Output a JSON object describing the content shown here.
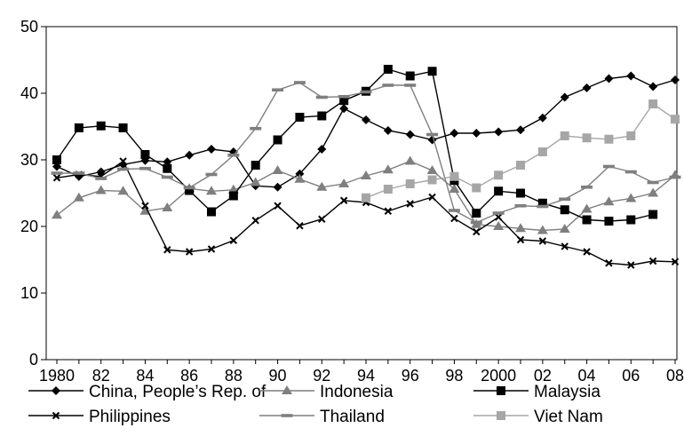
{
  "chart_data": {
    "type": "line",
    "title": "",
    "xlabel": "",
    "ylabel": "",
    "ylim": [
      0,
      50
    ],
    "yticks": [
      0,
      10,
      20,
      30,
      40,
      50
    ],
    "x": [
      1980,
      1981,
      1982,
      1983,
      1984,
      1985,
      1986,
      1987,
      1988,
      1989,
      1990,
      1991,
      1992,
      1993,
      1994,
      1995,
      1996,
      1997,
      1998,
      1999,
      2000,
      2001,
      2002,
      2003,
      2004,
      2005,
      2006,
      2007,
      2008
    ],
    "xtick_years": [
      1980,
      1982,
      1984,
      1986,
      1988,
      1990,
      1992,
      1994,
      1996,
      1998,
      2000,
      2002,
      2004,
      2006,
      2008
    ],
    "xtick_labels": [
      "1980",
      "82",
      "84",
      "86",
      "88",
      "90",
      "92",
      "94",
      "96",
      "98",
      "2000",
      "02",
      "04",
      "06",
      "08"
    ],
    "grid": false,
    "legend_position": "bottom",
    "series": [
      {
        "name": "China, People’s Rep. of",
        "marker": "diamond",
        "color": "#000000",
        "values": [
          29,
          27.5,
          28.2,
          29.3,
          29.9,
          29.7,
          30.7,
          31.6,
          31.2,
          26.1,
          25.9,
          27.9,
          31.6,
          37.7,
          36.0,
          34.4,
          33.8,
          33.0,
          34.0,
          34.0,
          34.2,
          34.5,
          36.3,
          39.4,
          40.8,
          42.2,
          42.6,
          41.0,
          42.0
        ]
      },
      {
        "name": "Indonesia",
        "marker": "triangle",
        "color": "#7f7f7f",
        "values": [
          21.7,
          24.3,
          25.4,
          25.3,
          22.3,
          22.8,
          25.7,
          25.3,
          25.5,
          26.6,
          28.4,
          27.1,
          25.9,
          26.4,
          27.6,
          28.5,
          29.8,
          28.4,
          25.6,
          20.3,
          20.0,
          19.7,
          19.4,
          19.6,
          22.6,
          23.7,
          24.2,
          25.0,
          27.7
        ]
      },
      {
        "name": "Malaysia",
        "marker": "square",
        "color": "#000000",
        "values": [
          30.0,
          34.8,
          35.1,
          34.8,
          30.8,
          28.7,
          25.4,
          22.2,
          24.6,
          29.2,
          33.0,
          36.4,
          36.6,
          38.9,
          40.3,
          43.6,
          42.6,
          43.3,
          26.9,
          22.0,
          25.3,
          25.0,
          23.5,
          22.5,
          21.0,
          20.8,
          21.0,
          21.8,
          null
        ]
      },
      {
        "name": "Philippines",
        "marker": "x",
        "color": "#000000",
        "values": [
          27.3,
          27.8,
          27.5,
          29.8,
          23.1,
          16.5,
          16.2,
          16.6,
          17.9,
          20.9,
          23.1,
          20.1,
          21.1,
          23.9,
          23.6,
          22.3,
          23.4,
          24.4,
          21.2,
          19.2,
          21.4,
          18.0,
          17.8,
          17.0,
          16.2,
          14.5,
          14.2,
          14.8,
          14.7
        ]
      },
      {
        "name": "Thailand",
        "marker": "dash",
        "color": "#7f7f7f",
        "values": [
          28.0,
          28.0,
          27.2,
          28.6,
          28.7,
          27.4,
          25.8,
          27.8,
          30.7,
          34.7,
          40.5,
          41.6,
          39.4,
          39.5,
          40.2,
          41.2,
          41.2,
          33.8,
          22.4,
          20.6,
          22.0,
          23.1,
          23.0,
          24.1,
          25.9,
          29.0,
          28.2,
          26.6,
          27.4
        ]
      },
      {
        "name": "Viet Nam",
        "marker": "square",
        "color": "#a6a6a6",
        "values": [
          null,
          null,
          null,
          null,
          null,
          null,
          null,
          null,
          null,
          null,
          null,
          null,
          null,
          null,
          24.3,
          25.6,
          26.4,
          27.0,
          27.5,
          25.8,
          27.7,
          29.2,
          31.2,
          33.6,
          33.3,
          33.1,
          33.6,
          38.4,
          36.1
        ]
      }
    ]
  }
}
